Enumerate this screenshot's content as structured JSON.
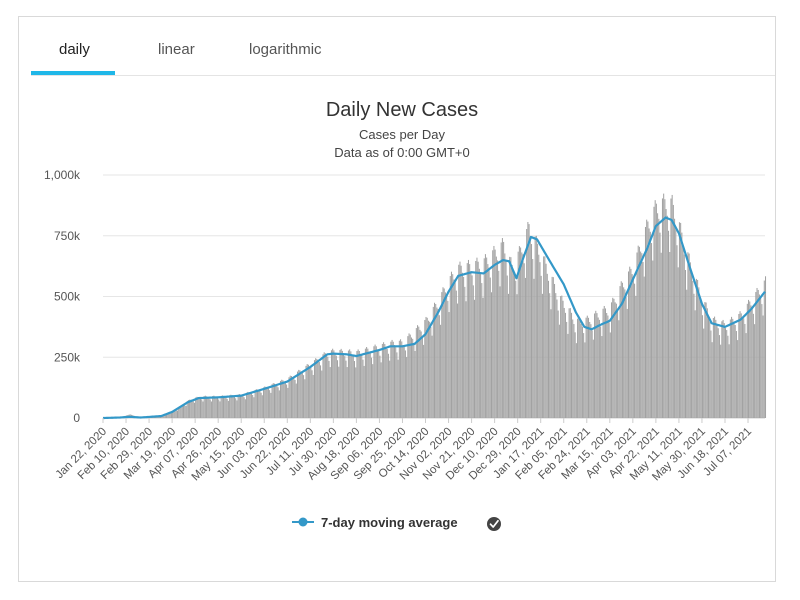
{
  "tabs": [
    {
      "label": "daily",
      "active": true
    },
    {
      "label": "linear",
      "active": false
    },
    {
      "label": "logarithmic",
      "active": false
    }
  ],
  "colors": {
    "tab_underline": "#1fb7e8",
    "bars": "#a2a2a2",
    "line": "#3398c8",
    "grid": "#e6e6e6"
  },
  "legend": {
    "label": "7-day moving average",
    "icon": "checkmark-circle-icon"
  },
  "chart_data": {
    "type": "bar",
    "title": "Daily New Cases",
    "subtitle": "Cases per Day",
    "subtitle2": "Data as of 0:00 GMT+0",
    "xlabel": "",
    "ylabel": "",
    "ylim": [
      0,
      1000000
    ],
    "yticks": [
      {
        "value": 0,
        "label": "0"
      },
      {
        "value": 250000,
        "label": "250k"
      },
      {
        "value": 500000,
        "label": "500k"
      },
      {
        "value": 750000,
        "label": "750k"
      },
      {
        "value": 1000000,
        "label": "1,000k"
      }
    ],
    "x_start": "2020-01-22",
    "x_end": "2021-07-21",
    "xtick_labels": [
      "Jan 22, 2020",
      "Feb 10, 2020",
      "Feb 29, 2020",
      "Mar 19, 2020",
      "Apr 07, 2020",
      "Apr 26, 2020",
      "May 15, 2020",
      "Jun 03, 2020",
      "Jun 22, 2020",
      "Jul 11, 2020",
      "Jul 30, 2020",
      "Aug 18, 2020",
      "Sep 06, 2020",
      "Sep 25, 2020",
      "Oct 14, 2020",
      "Nov 02, 2020",
      "Nov 21, 2020",
      "Dec 10, 2020",
      "Dec 29, 2020",
      "Jan 17, 2021",
      "Feb 05, 2021",
      "Feb 24, 2021",
      "Mar 15, 2021",
      "Apr 03, 2021",
      "Apr 22, 2021",
      "May 11, 2021",
      "May 30, 2021",
      "Jun 18, 2021",
      "Jul 07, 2021"
    ],
    "grid": true,
    "legend_position": "bottom-center",
    "series": [
      {
        "name": "Daily New Cases",
        "type": "bar",
        "points": [
          [
            "2020-01-22",
            0
          ],
          [
            "2020-02-05",
            3000
          ],
          [
            "2020-02-13",
            15000
          ],
          [
            "2020-02-20",
            2000
          ],
          [
            "2020-03-05",
            3000
          ],
          [
            "2020-03-19",
            25000
          ],
          [
            "2020-04-03",
            75000
          ],
          [
            "2020-04-12",
            85000
          ],
          [
            "2020-04-26",
            85000
          ],
          [
            "2020-05-15",
            92000
          ],
          [
            "2020-06-03",
            120000
          ],
          [
            "2020-06-22",
            155000
          ],
          [
            "2020-07-11",
            215000
          ],
          [
            "2020-07-25",
            260000
          ],
          [
            "2020-07-30",
            265000
          ],
          [
            "2020-08-18",
            260000
          ],
          [
            "2020-09-06",
            285000
          ],
          [
            "2020-09-18",
            300000
          ],
          [
            "2020-09-25",
            300000
          ],
          [
            "2020-10-14",
            385000
          ],
          [
            "2020-10-25",
            470000
          ],
          [
            "2020-11-02",
            545000
          ],
          [
            "2020-11-10",
            595000
          ],
          [
            "2020-11-21",
            605000
          ],
          [
            "2020-12-01",
            620000
          ],
          [
            "2020-12-10",
            660000
          ],
          [
            "2020-12-17",
            690000
          ],
          [
            "2020-12-24",
            600000
          ],
          [
            "2020-12-30",
            655000
          ],
          [
            "2021-01-07",
            760000
          ],
          [
            "2021-01-17",
            650000
          ],
          [
            "2021-02-01",
            480000
          ],
          [
            "2021-02-15",
            385000
          ],
          [
            "2021-02-24",
            390000
          ],
          [
            "2021-03-15",
            440000
          ],
          [
            "2021-03-25",
            530000
          ],
          [
            "2021-04-03",
            600000
          ],
          [
            "2021-04-15",
            770000
          ],
          [
            "2021-04-22",
            840000
          ],
          [
            "2021-04-30",
            860000
          ],
          [
            "2021-05-05",
            850000
          ],
          [
            "2021-05-11",
            760000
          ],
          [
            "2021-05-20",
            610000
          ],
          [
            "2021-05-30",
            470000
          ],
          [
            "2021-06-07",
            390000
          ],
          [
            "2021-06-18",
            370000
          ],
          [
            "2021-07-01",
            410000
          ],
          [
            "2021-07-10",
            470000
          ],
          [
            "2021-07-21",
            540000
          ]
        ]
      },
      {
        "name": "7-day moving average",
        "type": "line",
        "points": [
          [
            "2020-01-22",
            0
          ],
          [
            "2020-02-05",
            2000
          ],
          [
            "2020-02-13",
            5000
          ],
          [
            "2020-02-22",
            2000
          ],
          [
            "2020-03-10",
            8000
          ],
          [
            "2020-03-19",
            25000
          ],
          [
            "2020-04-01",
            65000
          ],
          [
            "2020-04-10",
            82000
          ],
          [
            "2020-04-26",
            85000
          ],
          [
            "2020-05-15",
            92000
          ],
          [
            "2020-06-03",
            120000
          ],
          [
            "2020-06-22",
            150000
          ],
          [
            "2020-07-11",
            210000
          ],
          [
            "2020-07-25",
            262000
          ],
          [
            "2020-07-30",
            265000
          ],
          [
            "2020-08-10",
            262000
          ],
          [
            "2020-08-18",
            255000
          ],
          [
            "2020-09-06",
            280000
          ],
          [
            "2020-09-15",
            295000
          ],
          [
            "2020-09-25",
            295000
          ],
          [
            "2020-10-05",
            305000
          ],
          [
            "2020-10-14",
            345000
          ],
          [
            "2020-10-25",
            440000
          ],
          [
            "2020-11-02",
            520000
          ],
          [
            "2020-11-10",
            585000
          ],
          [
            "2020-11-21",
            600000
          ],
          [
            "2020-12-01",
            595000
          ],
          [
            "2020-12-10",
            630000
          ],
          [
            "2020-12-17",
            650000
          ],
          [
            "2020-12-22",
            645000
          ],
          [
            "2020-12-28",
            575000
          ],
          [
            "2021-01-02",
            650000
          ],
          [
            "2021-01-09",
            745000
          ],
          [
            "2021-01-14",
            735000
          ],
          [
            "2021-01-24",
            650000
          ],
          [
            "2021-02-05",
            550000
          ],
          [
            "2021-02-15",
            435000
          ],
          [
            "2021-02-22",
            375000
          ],
          [
            "2021-02-28",
            365000
          ],
          [
            "2021-03-08",
            385000
          ],
          [
            "2021-03-15",
            400000
          ],
          [
            "2021-03-25",
            470000
          ],
          [
            "2021-04-03",
            570000
          ],
          [
            "2021-04-15",
            700000
          ],
          [
            "2021-04-22",
            790000
          ],
          [
            "2021-04-30",
            825000
          ],
          [
            "2021-05-05",
            815000
          ],
          [
            "2021-05-11",
            760000
          ],
          [
            "2021-05-20",
            620000
          ],
          [
            "2021-05-30",
            470000
          ],
          [
            "2021-06-07",
            390000
          ],
          [
            "2021-06-18",
            375000
          ],
          [
            "2021-07-01",
            405000
          ],
          [
            "2021-07-10",
            450000
          ],
          [
            "2021-07-21",
            520000
          ]
        ]
      }
    ]
  }
}
